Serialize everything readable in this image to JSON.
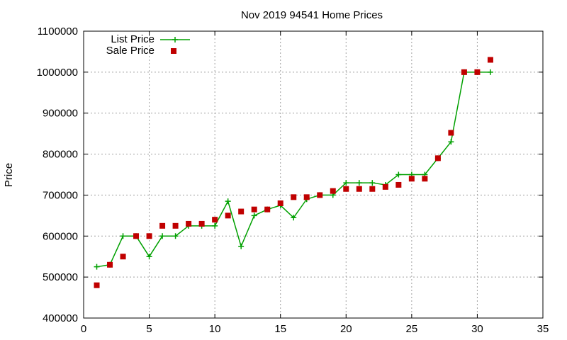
{
  "chart_data": {
    "type": "line",
    "title": "Nov 2019 94541 Home Prices",
    "xlabel": "",
    "ylabel": "Price",
    "xlim": [
      0,
      35
    ],
    "ylim": [
      400000,
      1100000
    ],
    "x_ticks": [
      0,
      5,
      10,
      15,
      20,
      25,
      30,
      35
    ],
    "y_ticks": [
      400000,
      500000,
      600000,
      700000,
      800000,
      900000,
      1000000,
      1100000
    ],
    "x_tick_labels": [
      "0",
      "5",
      "10",
      "15",
      "20",
      "25",
      "30",
      "35"
    ],
    "y_tick_labels": [
      "400000",
      "500000",
      "600000",
      "700000",
      "800000",
      "900000",
      "1000000",
      "1100000"
    ],
    "grid": true,
    "legend_position": "top-left",
    "series": [
      {
        "name": "List Price",
        "style": "line-plus",
        "color": "#00a000",
        "x": [
          1,
          2,
          3,
          4,
          5,
          6,
          7,
          8,
          9,
          10,
          11,
          12,
          13,
          14,
          15,
          16,
          17,
          18,
          19,
          20,
          21,
          22,
          23,
          24,
          25,
          26,
          27,
          28,
          29,
          30,
          31
        ],
        "y": [
          525000,
          530000,
          600000,
          600000,
          550000,
          600000,
          600000,
          625000,
          625000,
          625000,
          685000,
          575000,
          650000,
          665000,
          675000,
          645000,
          690000,
          700000,
          700000,
          730000,
          730000,
          730000,
          725000,
          750000,
          750000,
          750000,
          790000,
          830000,
          1000000,
          1000000,
          1000000
        ]
      },
      {
        "name": "Sale Price",
        "style": "points-square",
        "color": "#c00000",
        "x": [
          1,
          2,
          3,
          4,
          5,
          6,
          7,
          8,
          9,
          10,
          11,
          12,
          13,
          14,
          15,
          16,
          17,
          18,
          19,
          20,
          21,
          22,
          23,
          24,
          25,
          26,
          27,
          28,
          29,
          30,
          31
        ],
        "y": [
          480000,
          530000,
          550000,
          600000,
          600000,
          625000,
          625000,
          630000,
          630000,
          640000,
          650000,
          660000,
          665000,
          665000,
          680000,
          695000,
          695000,
          700000,
          710000,
          715000,
          715000,
          715000,
          720000,
          725000,
          740000,
          740000,
          790000,
          852000,
          1000000,
          1000000,
          1030000
        ]
      }
    ]
  }
}
